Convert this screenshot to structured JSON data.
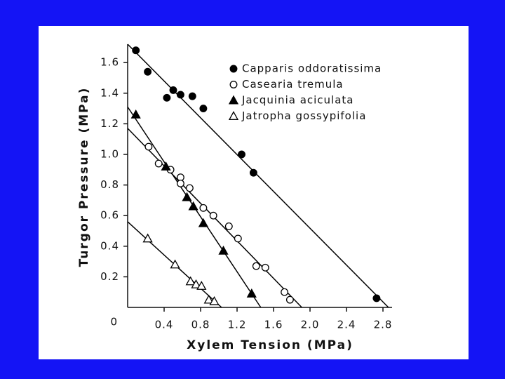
{
  "chart_data": {
    "type": "scatter",
    "x_label": "Xylem Tension (MPa)",
    "y_label": "Turgor Pressure (MPa)",
    "xlim": [
      0,
      2.9
    ],
    "ylim": [
      0,
      1.72
    ],
    "xticks": [
      0.4,
      0.8,
      1.2,
      1.6,
      {
        "value": 2,
        "label": "2.0"
      },
      2.4,
      2.8
    ],
    "yticks": [
      0,
      0.2,
      0.4,
      0.6,
      0.8,
      {
        "value": 1,
        "label": "1.0"
      },
      1.2,
      1.4,
      1.6
    ],
    "grid": false,
    "legend": "upper right",
    "series": [
      {
        "name": "Capparis oddoratissima",
        "color": "#000000",
        "marker": "circle",
        "filled": true,
        "x": [
          0.09,
          0.22,
          0.43,
          0.5,
          0.58,
          0.71,
          0.83,
          1.25,
          1.38,
          2.73
        ],
        "values": [
          1.68,
          1.54,
          1.37,
          1.42,
          1.39,
          1.38,
          1.3,
          1.0,
          0.88,
          0.06
        ],
        "fit_x": [
          0,
          2.86
        ],
        "fit_y": [
          1.72,
          0
        ]
      },
      {
        "name": "Casearia tremula",
        "color": "#000000",
        "marker": "circle",
        "filled": false,
        "x": [
          0.23,
          0.34,
          0.47,
          0.58,
          0.58,
          0.68,
          0.83,
          0.94,
          1.11,
          1.21,
          1.41,
          1.51,
          1.72,
          1.78
        ],
        "values": [
          1.05,
          0.94,
          0.9,
          0.85,
          0.81,
          0.78,
          0.65,
          0.6,
          0.53,
          0.45,
          0.27,
          0.26,
          0.1,
          0.05
        ],
        "fit_x": [
          0,
          1.91
        ],
        "fit_y": [
          1.17,
          0
        ]
      },
      {
        "name": "Jacquinia aciculata",
        "color": "#000000",
        "marker": "triangle",
        "filled": true,
        "x": [
          0.09,
          0.42,
          0.65,
          0.72,
          0.83,
          1.05,
          1.36
        ],
        "values": [
          1.26,
          0.92,
          0.72,
          0.66,
          0.55,
          0.37,
          0.09
        ],
        "fit_x": [
          0,
          1.46
        ],
        "fit_y": [
          1.31,
          0
        ]
      },
      {
        "name": "Jatropha gossypifolia",
        "color": "#000000",
        "marker": "triangle",
        "filled": false,
        "x": [
          0.22,
          0.52,
          0.69,
          0.75,
          0.81,
          0.89,
          0.95
        ],
        "values": [
          0.45,
          0.28,
          0.17,
          0.15,
          0.14,
          0.05,
          0.04
        ],
        "fit_x": [
          0,
          1.03
        ],
        "fit_y": [
          0.56,
          0
        ]
      }
    ]
  }
}
